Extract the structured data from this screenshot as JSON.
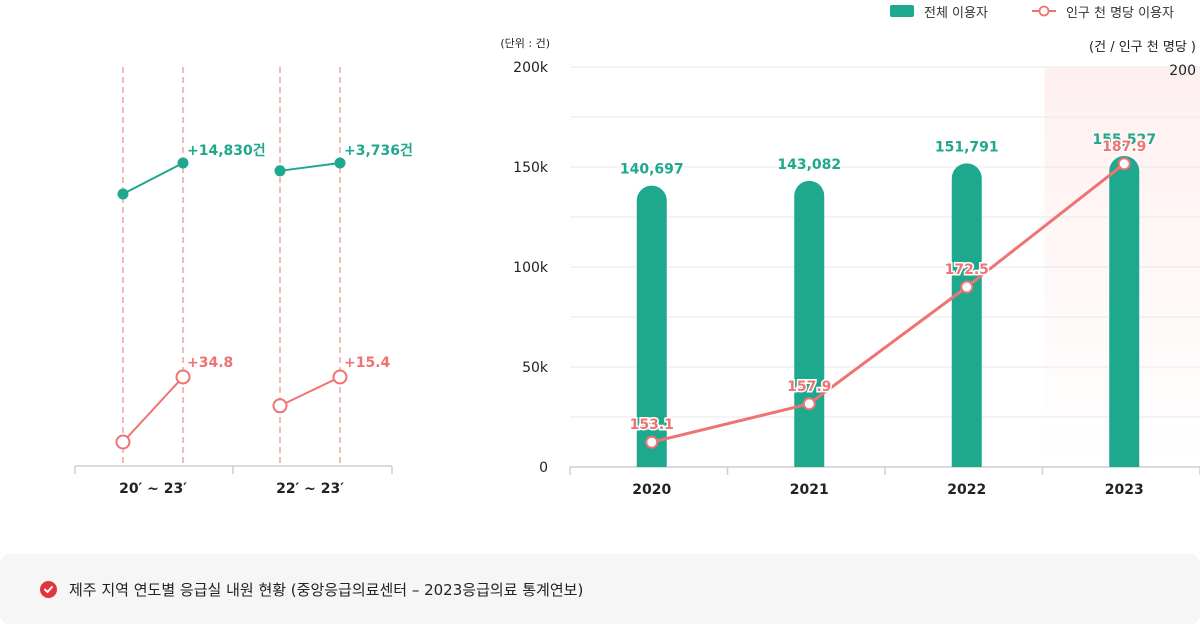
{
  "legend": {
    "bar_label": "전체 이용자",
    "line_label": "인구 천 명당 이용자"
  },
  "colors": {
    "bar": "#1ea88e",
    "line": "#f07373",
    "highlight": "#fff0f0",
    "grid": "#e9e9e9"
  },
  "footer": {
    "icon": "check-circle-icon",
    "text": "제주 지역 연도별 응급실 내원 현황 (중앙응급의료센터 – 2023응급의료 통계연보)"
  },
  "chart_data": [
    {
      "type": "line",
      "categories": [
        "20′ ~ 23′",
        "22′ ~ 23′"
      ],
      "series": [
        {
          "name": "전체 이용자",
          "groups": [
            {
              "from": 140697,
              "to": 155527,
              "label": "+14,830건"
            },
            {
              "from": 151791,
              "to": 155527,
              "label": "+3,736건"
            }
          ]
        },
        {
          "name": "인구 천 명당 이용자",
          "groups": [
            {
              "from": 153.1,
              "to": 187.9,
              "label": "+34.8"
            },
            {
              "from": 172.5,
              "to": 187.9,
              "label": "+15.4"
            }
          ]
        }
      ]
    },
    {
      "type": "bar",
      "categories": [
        "2020",
        "2021",
        "2022",
        "2023"
      ],
      "series": [
        {
          "name": "전체 이용자",
          "type": "bar",
          "values": [
            140697,
            143082,
            151791,
            155527
          ],
          "labels": [
            "140,697",
            "143,082",
            "151,791",
            "155,527"
          ]
        },
        {
          "name": "인구 천 명당 이용자",
          "type": "line",
          "values": [
            153.1,
            157.9,
            172.5,
            187.9
          ],
          "labels": [
            "153.1",
            "157.9",
            "172.5",
            "187.9"
          ]
        }
      ],
      "y_unit_label": "(단위 : 건)",
      "y_ticks": [
        "0",
        "50k",
        "100k",
        "150k",
        "200k"
      ],
      "ylim": [
        0,
        200000
      ],
      "y2_unit_label": "(건 / 인구 천 명당 )",
      "y2_tick": "200",
      "y2lim": [
        150,
        200
      ],
      "highlight_category": "2023",
      "grid": true
    }
  ]
}
